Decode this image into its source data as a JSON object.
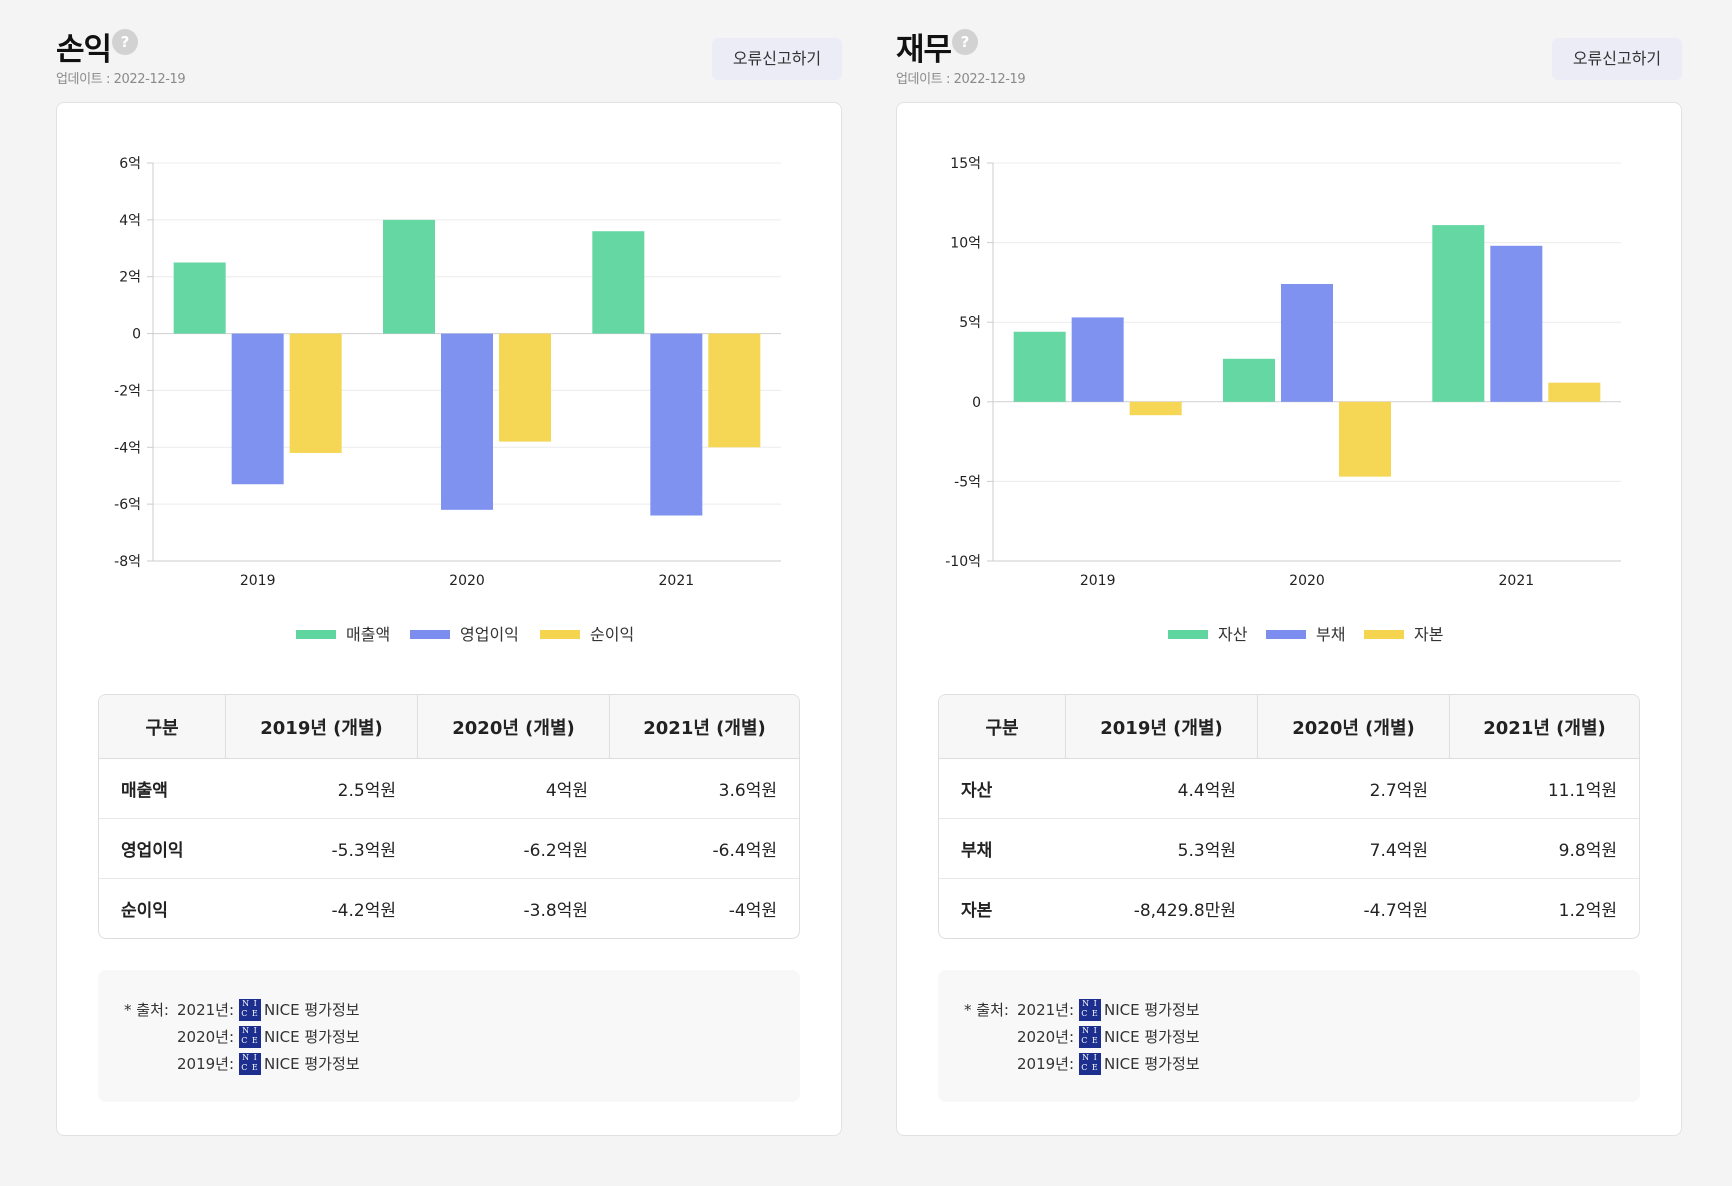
{
  "panels": [
    {
      "title": "손익",
      "help_icon_glyph": "?",
      "update_text": "업데이트 : 2022-12-19",
      "report_button_label": "오류신고하기",
      "table": {
        "headers": [
          "구분",
          "2019년 (개별)",
          "2020년 (개별)",
          "2021년 (개별)"
        ],
        "rows": [
          {
            "label": "매출액",
            "cells": [
              "2.5억원",
              "4억원",
              "3.6억원"
            ]
          },
          {
            "label": "영업이익",
            "cells": [
              "-5.3억원",
              "-6.2억원",
              "-6.4억원"
            ]
          },
          {
            "label": "순이익",
            "cells": [
              "-4.2억원",
              "-3.8억원",
              "-4억원"
            ]
          }
        ]
      },
      "source": {
        "label": "* 출처:",
        "entries": [
          {
            "year": "2021년:",
            "name": "NICE 평가정보"
          },
          {
            "year": "2020년:",
            "name": "NICE 평가정보"
          },
          {
            "year": "2019년:",
            "name": "NICE 평가정보"
          }
        ]
      }
    },
    {
      "title": "재무",
      "help_icon_glyph": "?",
      "update_text": "업데이트 : 2022-12-19",
      "report_button_label": "오류신고하기",
      "table": {
        "headers": [
          "구분",
          "2019년 (개별)",
          "2020년 (개별)",
          "2021년 (개별)"
        ],
        "rows": [
          {
            "label": "자산",
            "cells": [
              "4.4억원",
              "2.7억원",
              "11.1억원"
            ]
          },
          {
            "label": "부채",
            "cells": [
              "5.3억원",
              "7.4억원",
              "9.8억원"
            ]
          },
          {
            "label": "자본",
            "cells": [
              "-8,429.8만원",
              "-4.7억원",
              "1.2억원"
            ]
          }
        ]
      },
      "source": {
        "label": "* 출처:",
        "entries": [
          {
            "year": "2021년:",
            "name": "NICE 평가정보"
          },
          {
            "year": "2020년:",
            "name": "NICE 평가정보"
          },
          {
            "year": "2019년:",
            "name": "NICE 평가정보"
          }
        ]
      }
    }
  ],
  "nice_logo_text": [
    "N I",
    "C E"
  ],
  "colors": {
    "green": "#5fd6a0",
    "blue": "#7b8ef0",
    "yellow": "#f5d550",
    "grid": "#ececec",
    "axis": "#cccccc"
  },
  "chart_data": [
    {
      "type": "bar",
      "categories": [
        "2019",
        "2020",
        "2021"
      ],
      "series": [
        {
          "name": "매출액",
          "color": "#5fd6a0",
          "values": [
            2.5,
            4.0,
            3.6
          ]
        },
        {
          "name": "영업이익",
          "color": "#7b8ef0",
          "values": [
            -5.3,
            -6.2,
            -6.4
          ]
        },
        {
          "name": "순이익",
          "color": "#f5d550",
          "values": [
            -4.2,
            -3.8,
            -4.0
          ]
        }
      ],
      "yticks": [
        6,
        4,
        2,
        0,
        -2,
        -4,
        -6,
        -8
      ],
      "ytick_labels": [
        "6억",
        "4억",
        "2억",
        "0",
        "-2억",
        "-4억",
        "-6억",
        "-8억"
      ],
      "ylim": [
        -8,
        6
      ],
      "unit": "억",
      "grid": true,
      "legend_position": "bottom-center"
    },
    {
      "type": "bar",
      "categories": [
        "2019",
        "2020",
        "2021"
      ],
      "series": [
        {
          "name": "자산",
          "color": "#5fd6a0",
          "values": [
            4.4,
            2.7,
            11.1
          ]
        },
        {
          "name": "부채",
          "color": "#7b8ef0",
          "values": [
            5.3,
            7.4,
            9.8
          ]
        },
        {
          "name": "자본",
          "color": "#f5d550",
          "values": [
            -0.84,
            -4.7,
            1.2
          ]
        }
      ],
      "yticks": [
        15,
        10,
        5,
        0,
        -5,
        -10
      ],
      "ytick_labels": [
        "15억",
        "10억",
        "5억",
        "0",
        "-5억",
        "-10억"
      ],
      "ylim": [
        -10,
        15
      ],
      "unit": "억",
      "grid": true,
      "legend_position": "bottom-center"
    }
  ]
}
